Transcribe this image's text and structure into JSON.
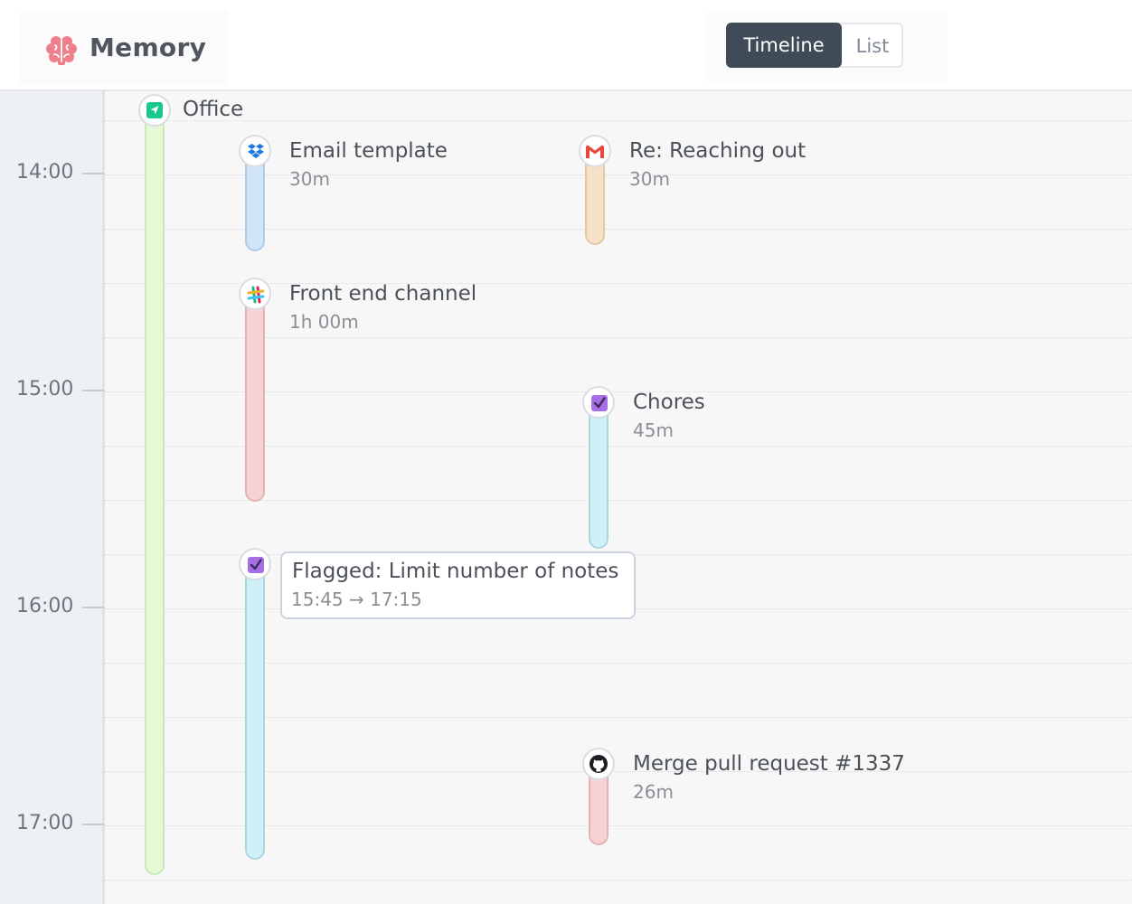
{
  "app": {
    "name": "Memory"
  },
  "view_switch": {
    "timeline_label": "Timeline",
    "list_label": "List",
    "active": "Timeline"
  },
  "timeline": {
    "hours": [
      "14:00",
      "15:00",
      "16:00",
      "17:00"
    ],
    "events": [
      {
        "id": "office",
        "title": "Office",
        "icon": "location-arrow-icon",
        "color": "#e4f9d5",
        "border": "#c7e9b4"
      },
      {
        "id": "email_template",
        "title": "Email template",
        "duration": "30m",
        "icon": "dropbox-icon",
        "color": "#d2e5f8",
        "border": "#b0cbe6"
      },
      {
        "id": "reaching_out",
        "title": "Re: Reaching out",
        "duration": "30m",
        "icon": "gmail-icon",
        "color": "#f6e1c6",
        "border": "#e4c8a4"
      },
      {
        "id": "front_end_channel",
        "title": "Front end channel",
        "duration": "1h 00m",
        "icon": "slack-icon",
        "color": "#f7d2d2",
        "border": "#e2b3b3"
      },
      {
        "id": "chores",
        "title": "Chores",
        "duration": "45m",
        "icon": "checkbox-icon",
        "color": "#d1eff7",
        "border": "#aad5e2"
      },
      {
        "id": "flagged",
        "title": "Flagged: Limit number of notes",
        "time_range": "15:45 → 17:15",
        "icon": "checkbox-icon",
        "color": "#d1eff7",
        "border": "#aad5e2"
      },
      {
        "id": "merge_pr",
        "title": "Merge pull request #1337",
        "duration": "26m",
        "icon": "github-icon",
        "color": "#f7d2d2",
        "border": "#e2b3b3"
      }
    ]
  }
}
